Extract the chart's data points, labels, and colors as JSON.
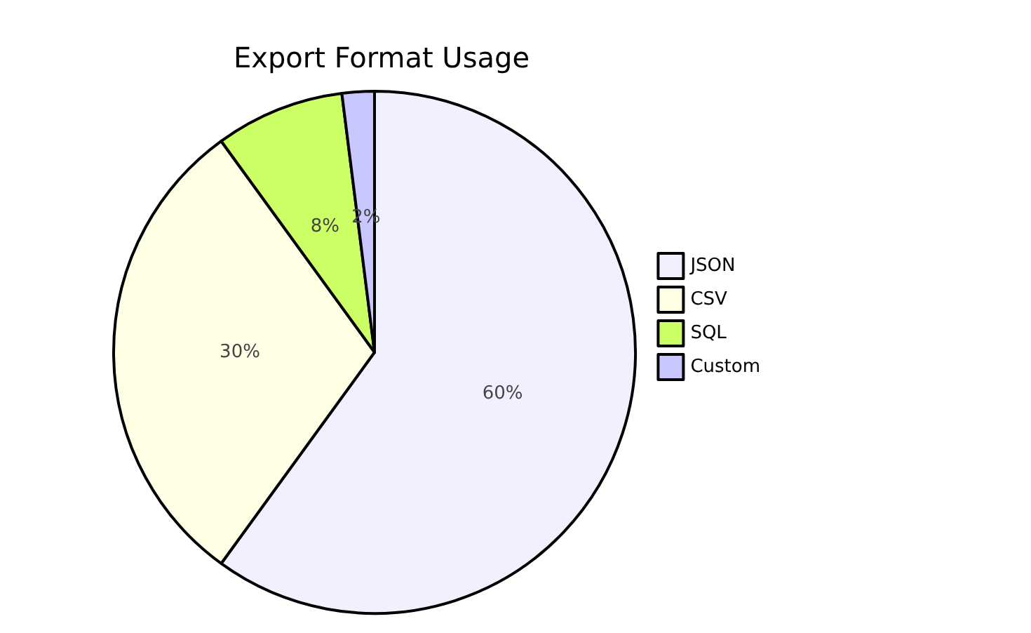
{
  "chart_data": {
    "type": "pie",
    "title": "Export Format Usage",
    "categories": [
      "JSON",
      "CSV",
      "SQL",
      "Custom"
    ],
    "values": [
      60,
      30,
      8,
      2
    ],
    "value_labels": [
      "60%",
      "30%",
      "8%",
      "2%"
    ],
    "colors": [
      "#f0f0ff",
      "#ffffe6",
      "#ccff66",
      "#c8c8ff"
    ],
    "legend": "right"
  }
}
